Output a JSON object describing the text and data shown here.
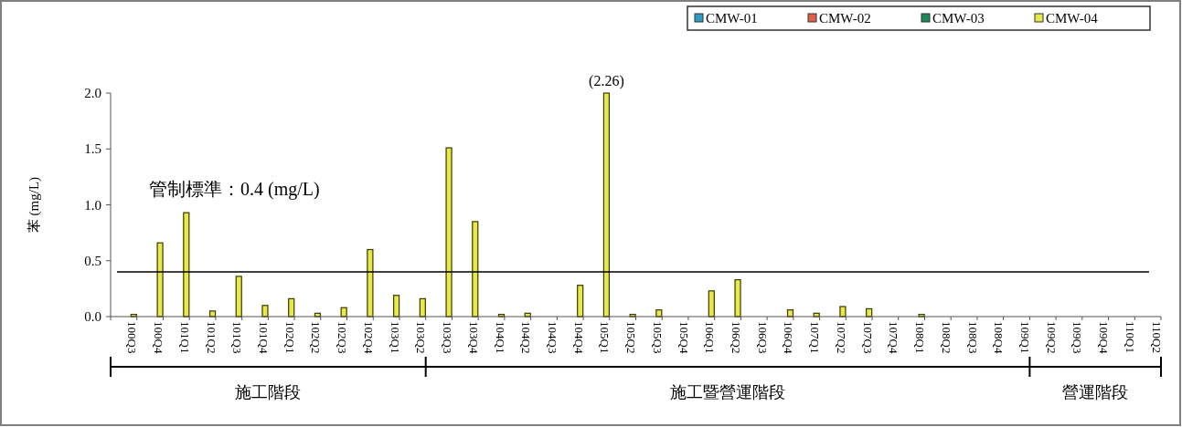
{
  "chart_data": {
    "type": "bar",
    "ylabel": "苯 (mg/L)",
    "categories": [
      "100Q3",
      "100Q4",
      "101Q1",
      "101Q2",
      "101Q3",
      "101Q4",
      "102Q1",
      "102Q2",
      "102Q3",
      "102Q4",
      "103Q1",
      "103Q2",
      "103Q3",
      "103Q4",
      "104Q1",
      "104Q2",
      "104Q3",
      "104Q4",
      "105Q1",
      "105Q2",
      "105Q3",
      "105Q4",
      "106Q1",
      "106Q2",
      "106Q3",
      "106Q4",
      "107Q1",
      "107Q2",
      "107Q3",
      "107Q4",
      "108Q1",
      "108Q2",
      "108Q3",
      "108Q4",
      "109Q1",
      "109Q2",
      "109Q3",
      "109Q4",
      "110Q1",
      "110Q2"
    ],
    "series": [
      {
        "name": "CMW-01",
        "color": "#2e9cc4",
        "values": [
          null,
          null,
          null,
          null,
          null,
          null,
          null,
          null,
          null,
          null,
          null,
          null,
          null,
          null,
          null,
          null,
          null,
          null,
          null,
          null,
          null,
          null,
          null,
          null,
          null,
          null,
          null,
          null,
          null,
          null,
          null,
          null,
          null,
          null,
          null,
          null,
          null,
          null,
          null,
          null
        ]
      },
      {
        "name": "CMW-02",
        "color": "#e0604a",
        "values": [
          null,
          null,
          null,
          null,
          null,
          null,
          null,
          null,
          null,
          null,
          null,
          null,
          null,
          null,
          null,
          null,
          null,
          null,
          null,
          null,
          null,
          null,
          null,
          null,
          null,
          null,
          null,
          null,
          null,
          null,
          null,
          null,
          null,
          null,
          null,
          null,
          null,
          null,
          null,
          null
        ]
      },
      {
        "name": "CMW-03",
        "color": "#1e8a5a",
        "values": [
          null,
          null,
          null,
          null,
          null,
          null,
          null,
          null,
          null,
          null,
          null,
          null,
          null,
          null,
          null,
          null,
          null,
          null,
          null,
          null,
          null,
          null,
          null,
          null,
          null,
          null,
          null,
          null,
          null,
          null,
          null,
          null,
          null,
          null,
          null,
          null,
          null,
          null,
          null,
          null
        ]
      },
      {
        "name": "CMW-04",
        "color": "#e8e84a",
        "values": [
          0.02,
          0.66,
          0.93,
          0.05,
          0.36,
          0.1,
          0.16,
          0.03,
          0.08,
          0.6,
          0.19,
          0.16,
          1.51,
          0.85,
          0.02,
          0.03,
          0,
          0.28,
          2.0,
          0.02,
          0.06,
          0,
          0.23,
          0.33,
          0,
          0.06,
          0.03,
          0.09,
          0.07,
          0,
          0.02,
          0,
          0,
          0,
          0,
          0,
          0,
          0,
          0,
          0
        ]
      }
    ],
    "ylim": [
      0,
      2.0
    ],
    "yticks": [
      {
        "value": 0,
        "label": "0.0"
      },
      {
        "value": 0.5,
        "label": "0.5"
      },
      {
        "value": 1,
        "label": "1.0"
      },
      {
        "value": 1.5,
        "label": "1.5"
      },
      {
        "value": 2,
        "label": "2.0"
      }
    ],
    "ref_lines": [
      {
        "axis": "y",
        "value": 0.4,
        "label": "管制標準：0.4 (mg/L)",
        "color": "#000000"
      }
    ],
    "annotations": [
      {
        "text": "(2.26)",
        "x": "105Q1",
        "y": 2.0
      },
      "施工階段",
      "施工暨營運階段",
      "營運階段"
    ],
    "grid": false,
    "legend": "top right"
  }
}
